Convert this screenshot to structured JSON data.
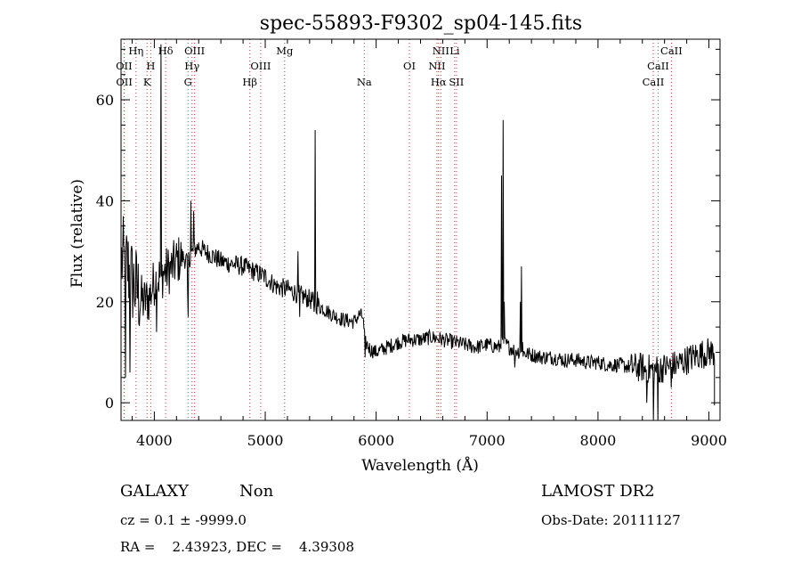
{
  "chart_data": {
    "type": "line",
    "title": "spec-55893-F9302_sp04-145.fits",
    "xlabel": "Wavelength (Å)",
    "ylabel": "Flux (relative)",
    "xlim": [
      3700,
      9100
    ],
    "ylim": [
      -3.5,
      72
    ],
    "xticks": [
      4000,
      5000,
      6000,
      7000,
      8000,
      9000
    ],
    "yticks": [
      0,
      20,
      40,
      60
    ],
    "grid": false,
    "line_color": "#000000",
    "marker_color": "#cc3333",
    "spectral_lines": [
      {
        "label": "Hη",
        "x": 3835,
        "row": 0
      },
      {
        "label": "Hδ",
        "x": 4102,
        "row": 0
      },
      {
        "label": "OIII",
        "x": 4363,
        "row": 0
      },
      {
        "label": "Mg",
        "x": 5175,
        "row": 0
      },
      {
        "label": "NII",
        "x": 6583,
        "row": 0
      },
      {
        "label": "Li",
        "x": 6708,
        "row": 0
      },
      {
        "label": "CaII",
        "x": 8662,
        "row": 0
      },
      {
        "label": "OII",
        "x": 3727,
        "row": 1
      },
      {
        "label": "H",
        "x": 3968,
        "row": 1
      },
      {
        "label": "Hγ",
        "x": 4340,
        "row": 1
      },
      {
        "label": "OIII",
        "x": 4959,
        "row": 1
      },
      {
        "label": "OI",
        "x": 6300,
        "row": 1
      },
      {
        "label": "NII",
        "x": 6548,
        "row": 1
      },
      {
        "label": "CaII",
        "x": 8542,
        "row": 1
      },
      {
        "label": "OII",
        "x": 3729,
        "row": 2
      },
      {
        "label": "K",
        "x": 3934,
        "row": 2
      },
      {
        "label": "G",
        "x": 4304,
        "row": 2
      },
      {
        "label": "Hβ",
        "x": 4861,
        "row": 2
      },
      {
        "label": "Na",
        "x": 5893,
        "row": 2
      },
      {
        "label": "Hα",
        "x": 6563,
        "row": 2
      },
      {
        "label": "SII",
        "x": 6724,
        "row": 2
      },
      {
        "label": "CaII",
        "x": 8498,
        "row": 2
      }
    ],
    "anchors": [
      [
        3720,
        28
      ],
      [
        3760,
        27
      ],
      [
        3800,
        24
      ],
      [
        3850,
        22
      ],
      [
        3900,
        20
      ],
      [
        3950,
        20.5
      ],
      [
        4000,
        24
      ],
      [
        4050,
        25
      ],
      [
        4100,
        26
      ],
      [
        4150,
        26.5
      ],
      [
        4200,
        28
      ],
      [
        4250,
        29
      ],
      [
        4300,
        28
      ],
      [
        4350,
        30
      ],
      [
        4400,
        31
      ],
      [
        4450,
        30
      ],
      [
        4500,
        29.5
      ],
      [
        4600,
        28
      ],
      [
        4700,
        27.5
      ],
      [
        4800,
        27
      ],
      [
        4900,
        26
      ],
      [
        5000,
        25
      ],
      [
        5100,
        23
      ],
      [
        5200,
        22.5
      ],
      [
        5300,
        21.5
      ],
      [
        5400,
        20.5
      ],
      [
        5500,
        19
      ],
      [
        5600,
        17.5
      ],
      [
        5700,
        16.5
      ],
      [
        5800,
        16
      ],
      [
        5850,
        17.5
      ],
      [
        5880,
        17
      ],
      [
        5900,
        12
      ],
      [
        5950,
        10.5
      ],
      [
        6000,
        10
      ],
      [
        6100,
        11
      ],
      [
        6200,
        12
      ],
      [
        6300,
        12.5
      ],
      [
        6400,
        12.5
      ],
      [
        6500,
        13
      ],
      [
        6600,
        12.5
      ],
      [
        6700,
        12
      ],
      [
        6800,
        11.5
      ],
      [
        6900,
        11
      ],
      [
        7000,
        11.5
      ],
      [
        7100,
        11
      ],
      [
        7150,
        12
      ],
      [
        7200,
        11
      ],
      [
        7300,
        10
      ],
      [
        7400,
        9.5
      ],
      [
        7500,
        9
      ],
      [
        7600,
        9
      ],
      [
        7700,
        8.5
      ],
      [
        7800,
        8.5
      ],
      [
        7900,
        8
      ],
      [
        8000,
        8
      ],
      [
        8100,
        7.5
      ],
      [
        8200,
        7.5
      ],
      [
        8300,
        7
      ],
      [
        8400,
        7
      ],
      [
        8500,
        6.5
      ],
      [
        8600,
        7
      ],
      [
        8700,
        7.5
      ],
      [
        8800,
        8.5
      ],
      [
        8900,
        9.5
      ],
      [
        9000,
        10
      ],
      [
        9050,
        10
      ]
    ],
    "spikes": [
      [
        4060,
        71
      ],
      [
        4066,
        25
      ],
      [
        4300,
        22
      ],
      [
        4330,
        40
      ],
      [
        4355,
        38
      ],
      [
        5010,
        23
      ],
      [
        5296,
        30
      ],
      [
        5450,
        54
      ],
      [
        5470,
        22
      ],
      [
        7130,
        45
      ],
      [
        7145,
        56
      ],
      [
        7155,
        20
      ],
      [
        7300,
        20
      ],
      [
        7312,
        27
      ],
      [
        7320,
        12
      ]
    ],
    "dips": [
      [
        3740,
        5
      ],
      [
        3780,
        6
      ],
      [
        4020,
        14
      ],
      [
        4305,
        17
      ],
      [
        5310,
        17
      ],
      [
        5440,
        18
      ],
      [
        5900,
        9
      ],
      [
        7110,
        10
      ],
      [
        7250,
        7
      ],
      [
        7700,
        7
      ],
      [
        8420,
        6
      ],
      [
        8440,
        0
      ],
      [
        8498,
        -3.5
      ],
      [
        8542,
        -3.5
      ],
      [
        8560,
        4
      ],
      [
        8662,
        3
      ]
    ]
  },
  "footer": {
    "object_class": "GALAXY",
    "subclass": "Non",
    "survey": "LAMOST DR2",
    "cz_line": "cz = 0.1 ± -9999.0",
    "obs_date_line": "Obs-Date: 20111127",
    "coords_line": "RA =    2.43923, DEC =    4.39308"
  }
}
